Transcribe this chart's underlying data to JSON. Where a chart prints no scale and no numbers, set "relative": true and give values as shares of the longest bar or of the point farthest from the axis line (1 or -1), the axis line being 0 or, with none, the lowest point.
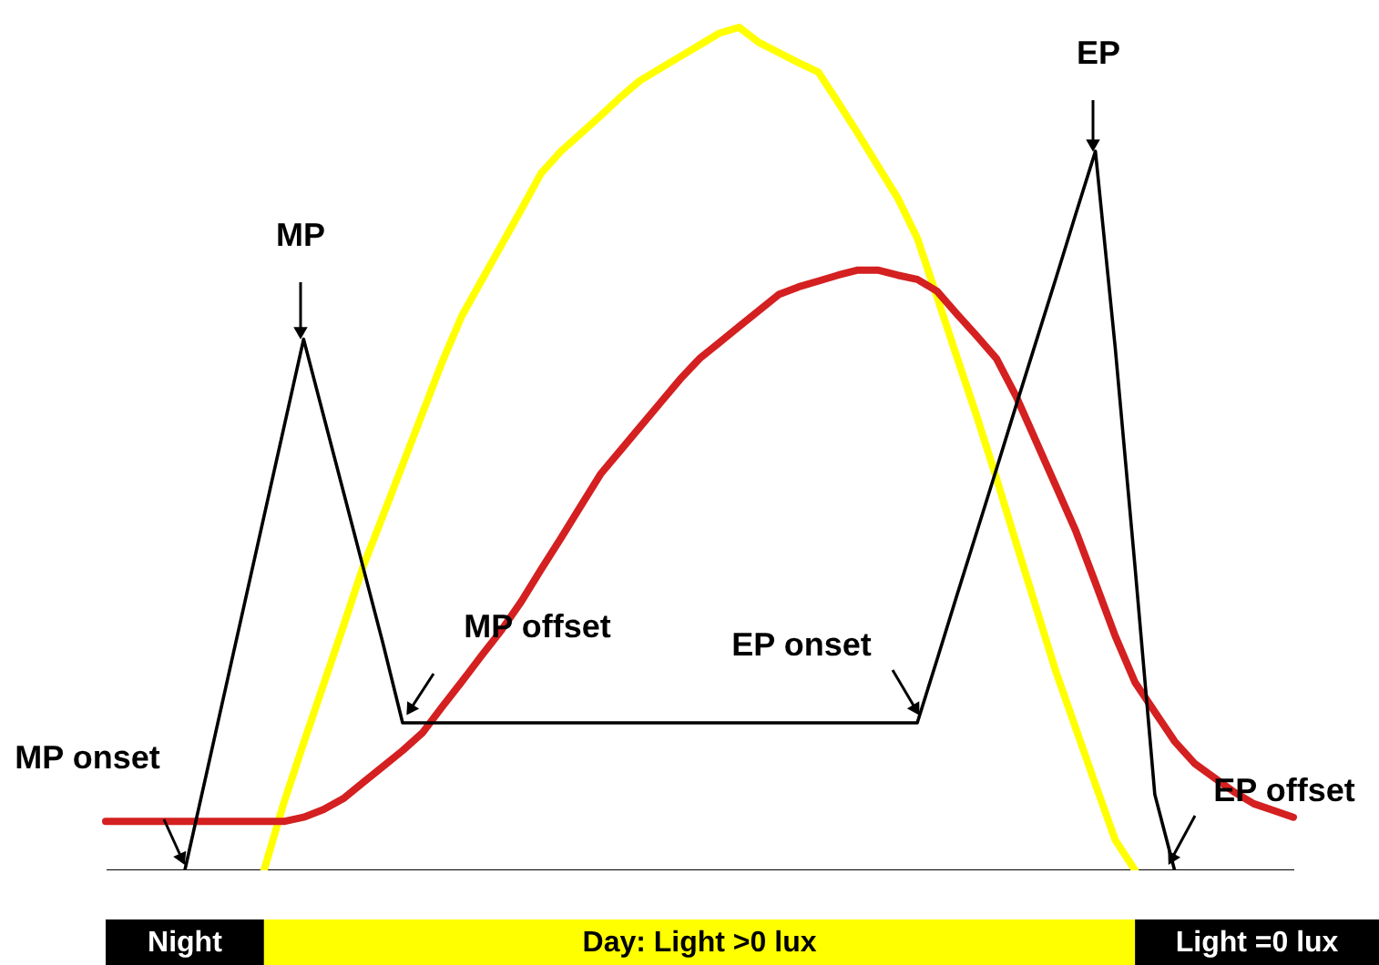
{
  "chart_data": [
    {
      "type": "line",
      "relative": true,
      "categories": [
        null,
        null,
        null,
        null,
        null,
        null,
        null,
        null,
        null,
        null,
        null,
        null,
        null,
        null,
        null,
        null,
        null,
        null,
        null,
        null,
        null,
        null,
        null,
        null,
        null,
        null,
        null,
        null,
        null,
        null,
        null,
        null,
        null,
        null,
        null,
        null,
        null,
        null,
        null,
        null,
        null,
        null,
        null,
        null,
        null,
        null,
        null,
        null,
        null,
        null,
        null,
        null,
        null,
        null,
        null,
        null,
        null,
        null,
        null,
        null,
        null
      ],
      "series": [
        {
          "color": "#ffff00",
          "values": [
            null,
            null,
            null,
            null,
            null,
            null,
            null,
            null,
            0,
            0.08,
            0.151,
            0.22,
            0.289,
            0.36,
            0.42,
            0.481,
            0.542,
            0.603,
            0.658,
            0.7,
            0.742,
            0.784,
            0.827,
            0.853,
            0.874,
            0.895,
            0.917,
            0.937,
            0.951,
            0.965,
            0.979,
            0.993,
            1.0,
            0.982,
            0.97,
            0.958,
            0.947,
            0.911,
            0.874,
            0.836,
            0.798,
            0.75,
            0.68,
            0.609,
            0.539,
            0.465,
            0.388,
            0.312,
            0.236,
            0.169,
            0.102,
            0.036,
            0,
            null,
            null,
            null,
            null,
            null,
            null,
            null,
            null
          ]
        },
        {
          "color": "#d42020",
          "values": [
            0.058,
            0.058,
            0.058,
            0.058,
            0.058,
            0.058,
            0.058,
            0.058,
            0.058,
            0.058,
            0.063,
            0.072,
            0.085,
            0.104,
            0.123,
            0.142,
            0.163,
            0.194,
            0.224,
            0.255,
            0.285,
            0.319,
            0.357,
            0.394,
            0.432,
            0.47,
            0.498,
            0.526,
            0.554,
            0.582,
            0.607,
            0.626,
            0.645,
            0.664,
            0.683,
            0.692,
            0.699,
            0.706,
            0.712,
            0.712,
            0.706,
            0.701,
            0.687,
            0.66,
            0.634,
            0.607,
            0.562,
            0.509,
            0.456,
            0.403,
            0.341,
            0.278,
            0.223,
            0.188,
            0.153,
            0.127,
            0.11,
            0.093,
            0.079,
            0.071,
            0.063
          ]
        },
        {
          "color": "#000000",
          "values": [
            null,
            null,
            null,
            null,
            0,
            0.105,
            0.21,
            0.315,
            0.42,
            0.525,
            0.63,
            0.54,
            0.45,
            0.36,
            0.27,
            0.175,
            0.175,
            0.175,
            0.175,
            0.175,
            0.175,
            0.175,
            0.175,
            0.175,
            0.175,
            0.175,
            0.175,
            0.175,
            0.175,
            0.175,
            0.175,
            0.175,
            0.175,
            0.175,
            0.175,
            0.175,
            0.175,
            0.175,
            0.175,
            0.175,
            0.175,
            0.175,
            0.25,
            0.326,
            0.401,
            0.476,
            0.552,
            0.627,
            0.702,
            0.778,
            0.853,
            0.62,
            0.36,
            0.09,
            0,
            null,
            null,
            null,
            null,
            null,
            null
          ]
        }
      ],
      "annotations": [
        "MP",
        "EP",
        "MP onset",
        "MP offset",
        "EP onset",
        "EP offset"
      ]
    },
    {
      "type": "other",
      "annotations": [
        "Night",
        "Day: Light >0 lux",
        "Light =0 lux"
      ]
    }
  ]
}
